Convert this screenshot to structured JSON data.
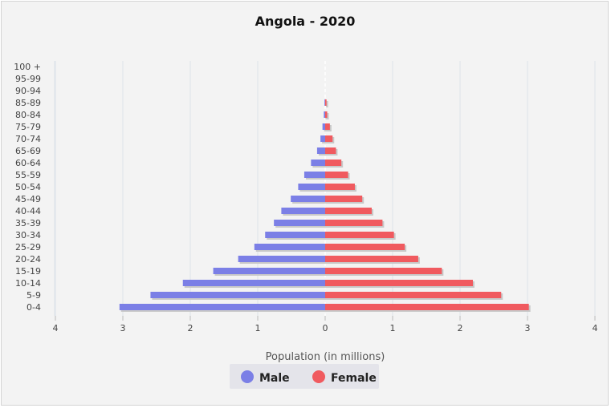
{
  "chart_data": {
    "type": "bar",
    "orientation": "horizontal-butterfly",
    "title": "Angola - 2020",
    "xlabel": "Population (in millions)",
    "ylabel": "",
    "xlim": [
      -4,
      4
    ],
    "x_ticks": [
      "4",
      "3",
      "2",
      "1",
      "0",
      "1",
      "2",
      "3",
      "4"
    ],
    "grid": true,
    "legend_position": "bottom-center",
    "categories": [
      "0-4",
      "5-9",
      "10-14",
      "15-19",
      "20-24",
      "25-29",
      "30-34",
      "35-39",
      "40-44",
      "45-49",
      "50-54",
      "55-59",
      "60-64",
      "65-69",
      "70-74",
      "75-79",
      "80-84",
      "85-89",
      "90-94",
      "95-99",
      "100 +"
    ],
    "series": [
      {
        "name": "Male",
        "color": "#7b7fe6",
        "values": [
          3.05,
          2.59,
          2.11,
          1.66,
          1.29,
          1.05,
          0.89,
          0.76,
          0.65,
          0.51,
          0.4,
          0.31,
          0.21,
          0.12,
          0.07,
          0.04,
          0.02,
          0.01,
          0.0,
          0.0,
          0.0
        ]
      },
      {
        "name": "Female",
        "color": "#f05a5f",
        "values": [
          3.02,
          2.61,
          2.19,
          1.73,
          1.38,
          1.18,
          1.02,
          0.85,
          0.69,
          0.55,
          0.44,
          0.34,
          0.24,
          0.16,
          0.11,
          0.07,
          0.03,
          0.02,
          0.0,
          0.0,
          0.0
        ]
      }
    ]
  }
}
